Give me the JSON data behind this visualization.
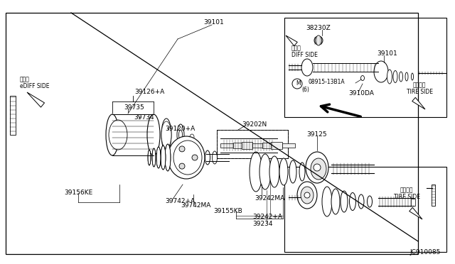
{
  "bg_color": "#ffffff",
  "line_color": "#000000",
  "text_color": "#000000",
  "fig_width": 6.4,
  "fig_height": 3.72,
  "dpi": 100,
  "diagram_code": "JC910085",
  "xlim": [
    0,
    640
  ],
  "ylim": [
    0,
    372
  ]
}
